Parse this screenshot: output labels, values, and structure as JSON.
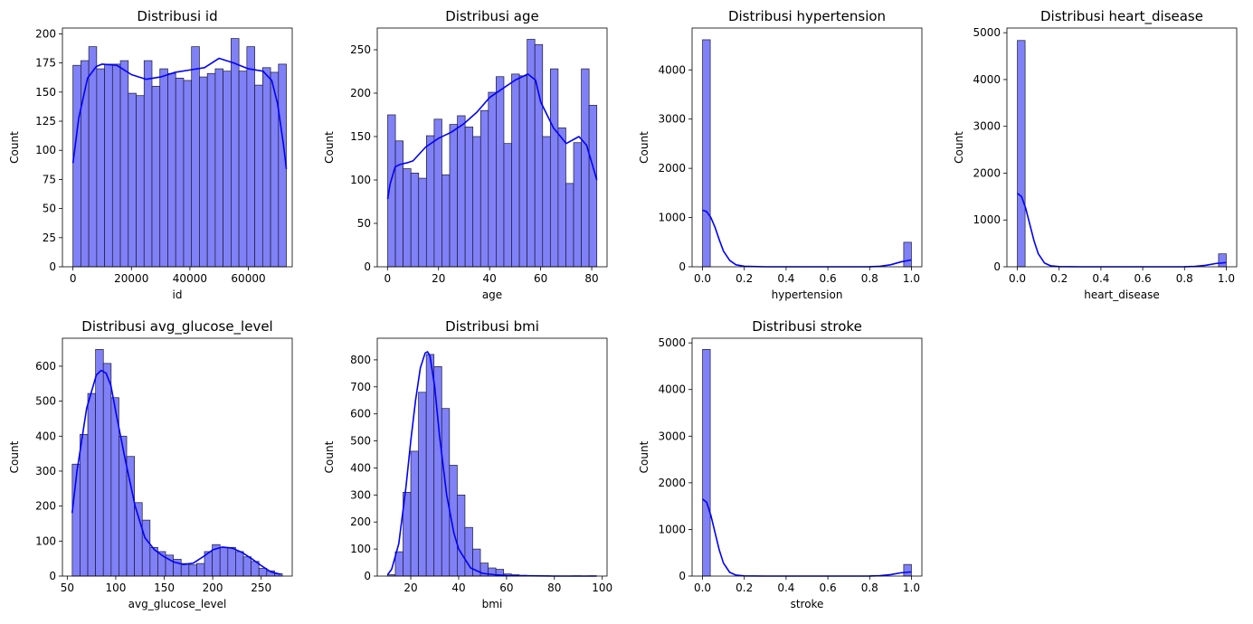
{
  "colors": {
    "bar_fill": "#8080f7",
    "bar_edge": "#1a1a33",
    "kde_line": "#0000ff",
    "axes": "#000000"
  },
  "chart_data": [
    {
      "type": "bar",
      "subtype": "histogram-kde",
      "title": "Distribusi id",
      "xlabel": "id",
      "ylabel": "Count",
      "xlim": [
        -3600,
        75000
      ],
      "ylim": [
        0,
        205
      ],
      "xticks": [
        0,
        20000,
        40000,
        60000
      ],
      "yticks": [
        0,
        25,
        50,
        75,
        100,
        125,
        150,
        175,
        200
      ],
      "bins": [
        0,
        73000
      ],
      "counts": [
        173,
        177,
        189,
        170,
        174,
        174,
        177,
        149,
        147,
        177,
        155,
        170,
        166,
        162,
        160,
        189,
        163,
        166,
        170,
        168,
        196,
        168,
        189,
        156,
        171,
        167,
        174
      ],
      "kde": {
        "x": [
          0,
          2000,
          5000,
          8000,
          10000,
          15000,
          20000,
          25000,
          30000,
          35000,
          40000,
          45000,
          50000,
          55000,
          60000,
          65000,
          68000,
          70000,
          72000,
          73000
        ],
        "y": [
          89,
          128,
          162,
          172,
          174,
          173,
          165,
          161,
          163,
          167,
          169,
          171,
          179,
          175,
          170,
          168,
          160,
          140,
          105,
          84
        ]
      }
    },
    {
      "type": "bar",
      "subtype": "histogram-kde",
      "title": "Distribusi age",
      "xlabel": "age",
      "ylabel": "Count",
      "xlim": [
        -4,
        86
      ],
      "ylim": [
        0,
        275
      ],
      "xticks": [
        0,
        20,
        40,
        60,
        80
      ],
      "yticks": [
        0,
        50,
        100,
        150,
        200,
        250
      ],
      "bins": [
        0.08,
        82
      ],
      "counts": [
        175,
        145,
        113,
        108,
        102,
        151,
        170,
        106,
        164,
        174,
        161,
        150,
        180,
        201,
        219,
        142,
        222,
        220,
        262,
        256,
        150,
        228,
        160,
        96,
        143,
        228,
        186
      ],
      "kde": {
        "x": [
          0.08,
          1,
          3,
          5,
          8,
          10,
          15,
          20,
          25,
          30,
          35,
          40,
          45,
          50,
          55,
          58,
          60,
          65,
          70,
          75,
          78,
          80,
          82
        ],
        "y": [
          78,
          95,
          115,
          118,
          120,
          122,
          138,
          148,
          155,
          165,
          178,
          195,
          205,
          215,
          222,
          215,
          190,
          160,
          142,
          150,
          140,
          120,
          100
        ]
      }
    },
    {
      "type": "bar",
      "subtype": "histogram-kde",
      "title": "Distribusi hypertension",
      "xlabel": "hypertension",
      "ylabel": "Count",
      "xlim": [
        -0.05,
        1.05
      ],
      "ylim": [
        0,
        4850
      ],
      "xticks": [
        0.0,
        0.2,
        0.4,
        0.6,
        0.8,
        1.0
      ],
      "yticks": [
        0,
        1000,
        2000,
        3000,
        4000
      ],
      "bins": [
        0,
        1
      ],
      "counts": [
        4612,
        0,
        0,
        0,
        0,
        0,
        0,
        0,
        0,
        0,
        0,
        0,
        0,
        0,
        0,
        0,
        0,
        0,
        0,
        0,
        0,
        0,
        0,
        0,
        0,
        0,
        498
      ],
      "kde": {
        "x": [
          0,
          0.02,
          0.04,
          0.06,
          0.08,
          0.1,
          0.13,
          0.16,
          0.2,
          0.3,
          0.5,
          0.7,
          0.8,
          0.85,
          0.9,
          0.95,
          1.0
        ],
        "y": [
          1150,
          1120,
          1000,
          800,
          550,
          320,
          130,
          40,
          10,
          0,
          0,
          0,
          2,
          10,
          40,
          100,
          140
        ]
      }
    },
    {
      "type": "bar",
      "subtype": "histogram-kde",
      "title": "Distribusi heart_disease",
      "xlabel": "heart_disease",
      "ylabel": "Count",
      "xlim": [
        -0.05,
        1.05
      ],
      "ylim": [
        0,
        5100
      ],
      "xticks": [
        0.0,
        0.2,
        0.4,
        0.6,
        0.8,
        1.0
      ],
      "yticks": [
        0,
        1000,
        2000,
        3000,
        4000,
        5000
      ],
      "bins": [
        0,
        1
      ],
      "counts": [
        4834,
        0,
        0,
        0,
        0,
        0,
        0,
        0,
        0,
        0,
        0,
        0,
        0,
        0,
        0,
        0,
        0,
        0,
        0,
        0,
        0,
        0,
        0,
        0,
        0,
        0,
        276
      ],
      "kde": {
        "x": [
          0,
          0.02,
          0.04,
          0.06,
          0.08,
          0.1,
          0.13,
          0.16,
          0.2,
          0.3,
          0.5,
          0.7,
          0.8,
          0.85,
          0.9,
          0.95,
          1.0
        ],
        "y": [
          1570,
          1500,
          1250,
          900,
          550,
          280,
          80,
          20,
          3,
          0,
          0,
          0,
          2,
          8,
          30,
          70,
          90
        ]
      }
    },
    {
      "type": "bar",
      "subtype": "histogram-kde",
      "title": "Distribusi avg_glucose_level",
      "xlabel": "avg_glucose_level",
      "ylabel": "Count",
      "xlim": [
        45,
        282
      ],
      "ylim": [
        0,
        680
      ],
      "xticks": [
        50,
        100,
        150,
        200,
        250
      ],
      "yticks": [
        0,
        100,
        200,
        300,
        400,
        500,
        600
      ],
      "bins": [
        55.12,
        271.74
      ],
      "counts": [
        320,
        405,
        522,
        648,
        608,
        510,
        400,
        342,
        210,
        160,
        82,
        70,
        60,
        48,
        36,
        32,
        36,
        70,
        90,
        82,
        82,
        70,
        55,
        42,
        22,
        15,
        7
      ],
      "kde": {
        "x": [
          55,
          60,
          70,
          80,
          85,
          90,
          95,
          100,
          110,
          120,
          130,
          140,
          150,
          160,
          170,
          180,
          190,
          200,
          210,
          220,
          230,
          240,
          250,
          260,
          270
        ],
        "y": [
          180,
          300,
          480,
          575,
          588,
          580,
          545,
          470,
          330,
          200,
          110,
          75,
          55,
          40,
          33,
          37,
          55,
          75,
          83,
          80,
          68,
          50,
          30,
          12,
          5
        ]
      }
    },
    {
      "type": "bar",
      "subtype": "histogram-kde",
      "title": "Distribusi bmi",
      "xlabel": "bmi",
      "ylabel": "Count",
      "xlim": [
        6,
        102
      ],
      "ylim": [
        0,
        880
      ],
      "xticks": [
        20,
        40,
        60,
        80,
        100
      ],
      "yticks": [
        0,
        100,
        200,
        300,
        400,
        500,
        600,
        700,
        800
      ],
      "bins": [
        10.3,
        97.6
      ],
      "counts": [
        5,
        90,
        310,
        462,
        680,
        820,
        775,
        620,
        410,
        300,
        180,
        100,
        48,
        30,
        25,
        8,
        5,
        3,
        2,
        1,
        1,
        0,
        0,
        0,
        1,
        0,
        1
      ],
      "kde": {
        "x": [
          10.3,
          12,
          15,
          18,
          20,
          22,
          24,
          26,
          27,
          28,
          30,
          32,
          35,
          38,
          40,
          45,
          50,
          55,
          60,
          65,
          70,
          80,
          90,
          97.6
        ],
        "y": [
          5,
          25,
          120,
          330,
          500,
          650,
          770,
          825,
          830,
          815,
          700,
          520,
          300,
          160,
          100,
          30,
          10,
          5,
          2,
          1,
          1,
          0,
          0,
          0
        ]
      }
    },
    {
      "type": "bar",
      "subtype": "histogram-kde",
      "title": "Distribusi stroke",
      "xlabel": "stroke",
      "ylabel": "Count",
      "xlim": [
        -0.05,
        1.05
      ],
      "ylim": [
        0,
        5100
      ],
      "xticks": [
        0.0,
        0.2,
        0.4,
        0.6,
        0.8,
        1.0
      ],
      "yticks": [
        0,
        1000,
        2000,
        3000,
        4000,
        5000
      ],
      "bins": [
        0,
        1
      ],
      "counts": [
        4861,
        0,
        0,
        0,
        0,
        0,
        0,
        0,
        0,
        0,
        0,
        0,
        0,
        0,
        0,
        0,
        0,
        0,
        0,
        0,
        0,
        0,
        0,
        0,
        0,
        0,
        249
      ],
      "kde": {
        "x": [
          0,
          0.02,
          0.04,
          0.06,
          0.08,
          0.1,
          0.13,
          0.16,
          0.2,
          0.3,
          0.5,
          0.7,
          0.8,
          0.85,
          0.9,
          0.95,
          1.0
        ],
        "y": [
          1650,
          1580,
          1300,
          930,
          560,
          280,
          80,
          20,
          3,
          0,
          0,
          0,
          2,
          8,
          30,
          70,
          90
        ]
      }
    }
  ]
}
